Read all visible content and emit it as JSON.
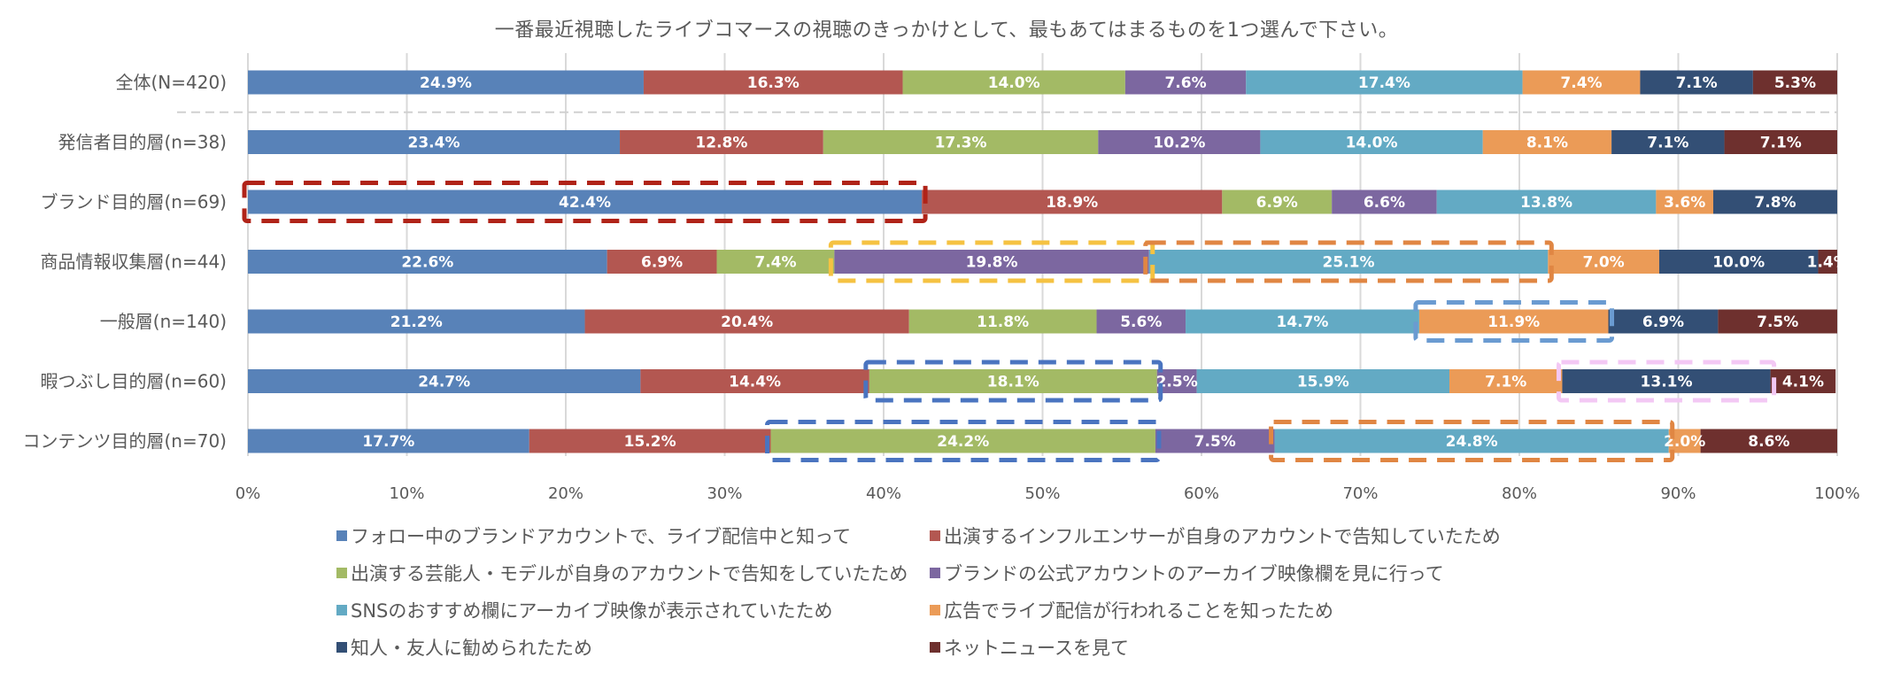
{
  "chart_data": {
    "type": "bar",
    "orientation": "horizontal",
    "stacked": "percent",
    "title": "一番最近視聴したライブコマースの視聴のきっかけとして、最も当てはまるものを1つ選んで下さい。",
    "title_display": "一番最近視聴したライブコマースの視聴のきっかけとして、最もあてはまるものを1つ選んで下さい。",
    "xlabel": "",
    "ylabel": "",
    "xlim": [
      0,
      100
    ],
    "x_ticks": [
      "0%",
      "10%",
      "20%",
      "30%",
      "40%",
      "50%",
      "60%",
      "70%",
      "80%",
      "90%",
      "100%"
    ],
    "grid": "vertical",
    "legend_position": "bottom",
    "categories": [
      "全体(N=420)",
      "発信者目的層(n=38)",
      "ブランド目的層(n=69)",
      "商品情報収集層(n=44)",
      "一般層(n=140)",
      "暇つぶし目的層(n=60)",
      "コンテンツ目的層(n=70)"
    ],
    "series": [
      {
        "name": "フォロー中のブランドアカウントで、ライブ配信中と知って",
        "color": "#5882B8",
        "values": [
          24.9,
          23.4,
          42.4,
          22.6,
          21.2,
          24.7,
          17.7
        ]
      },
      {
        "name": "出演するインフルエンサーが自身のアカウントで告知していたため",
        "color": "#B35751",
        "values": [
          16.3,
          12.8,
          18.9,
          6.9,
          20.4,
          14.4,
          15.2
        ]
      },
      {
        "name": "出演する芸能人・モデルが自身のアカウントで告知をしていたため",
        "color": "#A3BA65",
        "values": [
          14.0,
          17.3,
          6.9,
          7.4,
          11.8,
          18.1,
          24.2
        ]
      },
      {
        "name": "ブランドの公式アカウントのアーカイブ映像欄を見に行って",
        "color": "#7C67A0",
        "values": [
          7.6,
          10.2,
          6.6,
          19.8,
          5.6,
          2.5,
          7.5
        ]
      },
      {
        "name": "SNSのおすすめ欄にアーカイブ映像が表示されていたため",
        "color": "#63AAC4",
        "values": [
          17.4,
          14.0,
          13.8,
          25.1,
          14.7,
          15.9,
          24.8
        ]
      },
      {
        "name": "広告でライブ配信が行われることを知ったため",
        "color": "#EB9B57",
        "values": [
          7.4,
          8.1,
          3.6,
          7.0,
          11.9,
          7.1,
          2.0
        ]
      },
      {
        "name": "知人・友人に勧められたため",
        "color": "#334F75",
        "values": [
          7.1,
          7.1,
          7.8,
          10.0,
          6.9,
          13.1,
          0
        ]
      },
      {
        "name": "ネットニュースを見て",
        "color": "#6E302E",
        "values": [
          5.3,
          7.1,
          0,
          1.4,
          7.5,
          4.1,
          8.6
        ]
      }
    ],
    "data_labels": [
      [
        "24.9%",
        "16.3%",
        "14.0%",
        "7.6%",
        "17.4%",
        "7.4%",
        "7.1%",
        "5.3%"
      ],
      [
        "23.4%",
        "12.8%",
        "17.3%",
        "10.2%",
        "14.0%",
        "8.1%",
        "7.1%",
        "7.1%"
      ],
      [
        "42.4%",
        "18.9%",
        "6.9%",
        "6.6%",
        "13.8%",
        "3.6%",
        "7.8%",
        ""
      ],
      [
        "22.6%",
        "6.9%",
        "7.4%",
        "19.8%",
        "25.1%",
        "7.0%",
        "10.0%",
        "1.4%"
      ],
      [
        "21.2%",
        "20.4%",
        "11.8%",
        "5.6%",
        "14.7%",
        "11.9%",
        "6.9%",
        "7.5%"
      ],
      [
        "24.7%",
        "14.4%",
        "18.1%",
        "2.5%",
        "15.9%",
        "7.1%",
        "13.1%",
        "4.1%"
      ],
      [
        "17.7%",
        "15.2%",
        "24.2%",
        "7.5%",
        "24.8%",
        "2.0%",
        "",
        "8.6%"
      ]
    ],
    "separator_after_category": 0,
    "annotations": [
      {
        "type": "dashed-box",
        "category_index": 2,
        "series_index": 0,
        "color": "#B02318"
      },
      {
        "type": "dashed-box",
        "category_index": 3,
        "series_index": 3,
        "color": "#F5C242"
      },
      {
        "type": "dashed-box",
        "category_index": 3,
        "series_index": 4,
        "color": "#E08643"
      },
      {
        "type": "dashed-box",
        "category_index": 4,
        "series_index": 5,
        "color": "#6A9BD1"
      },
      {
        "type": "dashed-box",
        "category_index": 5,
        "series_index": 2,
        "color": "#4A74C0"
      },
      {
        "type": "dashed-box",
        "category_index": 5,
        "series_index": 6,
        "color": "#F3C8F4"
      },
      {
        "type": "dashed-box",
        "category_index": 6,
        "series_index": 2,
        "color": "#4A74C0"
      },
      {
        "type": "dashed-box",
        "category_index": 6,
        "series_index": 4,
        "color": "#E08643"
      }
    ]
  }
}
